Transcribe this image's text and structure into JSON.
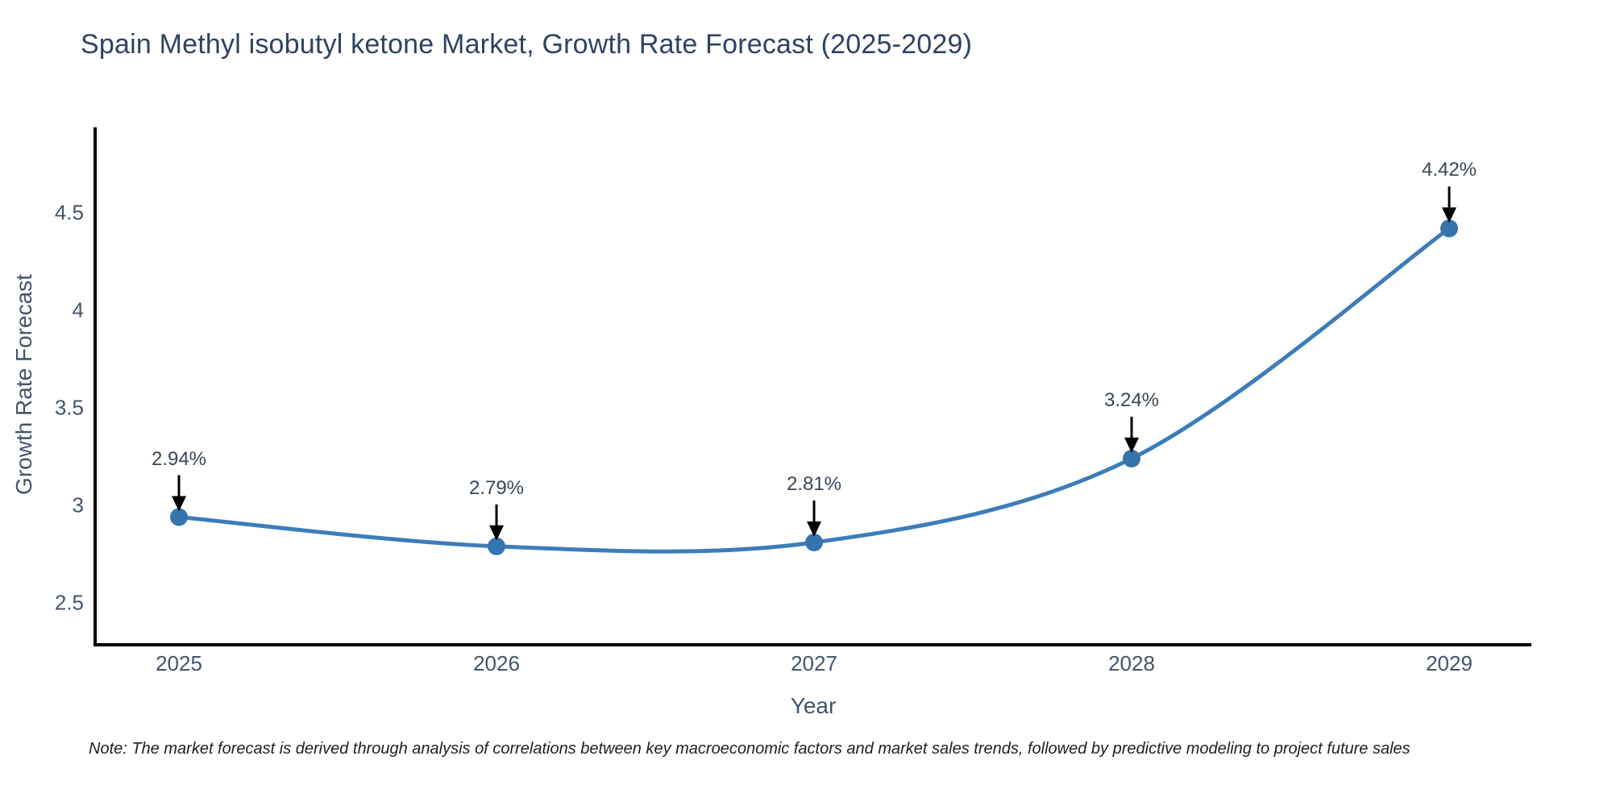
{
  "chart_data": {
    "type": "line",
    "title": "Spain Methyl isobutyl ketone Market, Growth Rate Forecast (2025-2029)",
    "xlabel": "Year",
    "ylabel": "Growth Rate Forecast",
    "categories": [
      "2025",
      "2026",
      "2027",
      "2028",
      "2029"
    ],
    "values": [
      2.94,
      2.79,
      2.81,
      3.24,
      4.42
    ],
    "point_labels": [
      "2.94%",
      "2.79%",
      "2.81%",
      "3.24%",
      "4.42%"
    ],
    "y_ticks": [
      "2.5",
      "3",
      "3.5",
      "4",
      "4.5"
    ],
    "y_tick_values": [
      2.5,
      3,
      3.5,
      4,
      4.5
    ],
    "ylim": [
      2.285,
      4.93
    ],
    "grid": false,
    "legend": "none",
    "line_shape": "spline",
    "line_color": "#3c7db9",
    "marker_color": "#3674ae",
    "axis_color": "#000000",
    "annotation_arrow_color": "#000000"
  },
  "note": "Note: The market forecast is derived through analysis of correlations between key macroeconomic factors and market sales trends, followed by predictive modeling to project future sales"
}
